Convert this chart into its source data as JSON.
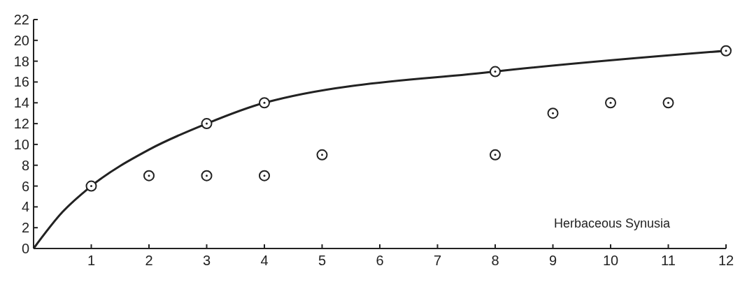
{
  "chart_data": {
    "type": "scatter",
    "xlim": [
      0,
      12
    ],
    "xticks": [
      1,
      2,
      3,
      4,
      5,
      6,
      7,
      8,
      9,
      10,
      11,
      12
    ],
    "ylim": [
      0,
      22
    ],
    "yticks": [
      0,
      2,
      4,
      6,
      8,
      10,
      12,
      14,
      16,
      18,
      20,
      22
    ],
    "grid": false,
    "annotations": [
      "Herbaceous Synusia"
    ],
    "series": [
      {
        "color": "#222222",
        "marker": "circle",
        "x": [
          1,
          2,
          3,
          3,
          4,
          4,
          5,
          8,
          8,
          9,
          10,
          11,
          12
        ],
        "values": [
          6,
          7,
          7,
          12,
          7,
          14,
          9,
          9,
          17,
          13,
          14,
          14,
          19
        ]
      },
      {
        "type": "line",
        "color": "#222222",
        "marker": "none",
        "line_style": "solid",
        "x": [
          0,
          0.5,
          1,
          2,
          3,
          4,
          8,
          12
        ],
        "values": [
          0,
          3.5,
          6,
          9.5,
          12,
          14,
          17,
          19
        ]
      }
    ]
  }
}
